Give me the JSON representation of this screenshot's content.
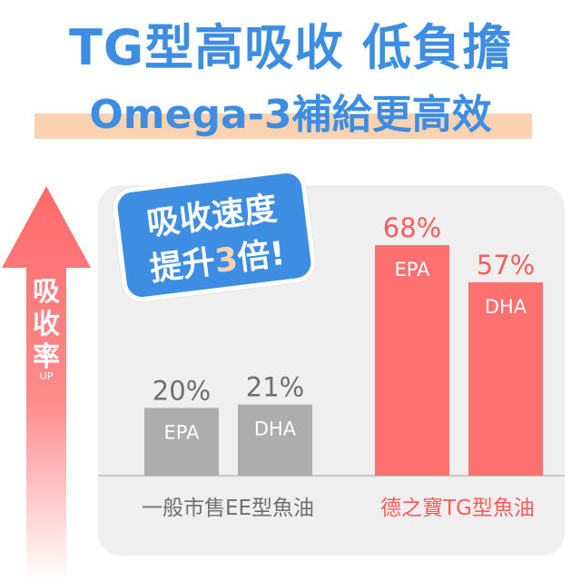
{
  "title": {
    "line1": "TG型高吸收 低負擔",
    "line2": "Omega-3補給更高效"
  },
  "badge": {
    "line1": "吸收速度",
    "line2_prefix": "提升",
    "line2_highlight": "3",
    "line2_suffix": "倍!"
  },
  "axis": {
    "label": "吸收率",
    "sublabel": "UP"
  },
  "colors": {
    "blue": "#3d8ee3",
    "gray_bar": "#adadad",
    "red_bar": "#ff7171",
    "gray_text": "#6f6f6f",
    "red_text": "#ff5c5c",
    "band": "#fcd2b0"
  },
  "chart_data": {
    "type": "bar",
    "groups": [
      {
        "name": "一般市售EE型魚油",
        "bars": [
          {
            "category": "EPA",
            "value": 20,
            "label": "20%"
          },
          {
            "category": "DHA",
            "value": 21,
            "label": "21%"
          }
        ]
      },
      {
        "name": "德之寶TG型魚油",
        "bars": [
          {
            "category": "EPA",
            "value": 68,
            "label": "68%"
          },
          {
            "category": "DHA",
            "value": 57,
            "label": "57%"
          }
        ]
      }
    ],
    "unit": "%",
    "ylim": [
      0,
      68
    ]
  }
}
